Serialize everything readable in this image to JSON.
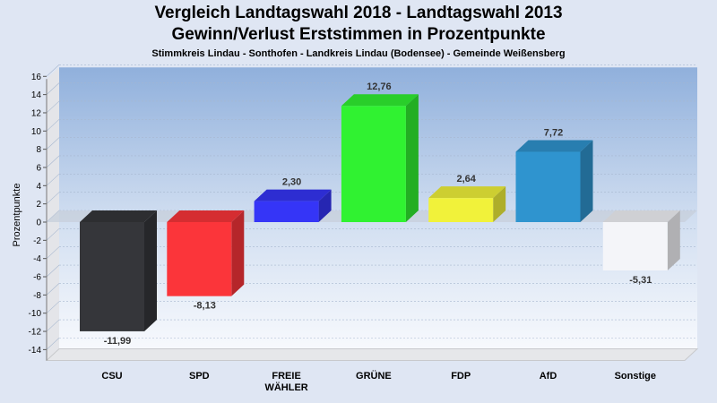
{
  "chart_data": {
    "type": "bar",
    "title": "Vergleich Landtagswahl 2018 - Landtagswahl 2013",
    "subtitle": "Gewinn/Verlust Erststimmen in Prozentpunkte",
    "subtitle2": "Stimmkreis Lindau - Sonthofen - Landkreis Lindau (Bodensee) - Gemeinde Weißensberg",
    "ylabel": "Prozentpunkte",
    "ylim": [
      -15,
      16
    ],
    "yticks": [
      16,
      14,
      12,
      10,
      8,
      6,
      4,
      2,
      0,
      -2,
      -4,
      -6,
      -8,
      -10,
      -12,
      -14
    ],
    "categories": [
      [
        "CSU"
      ],
      [
        "SPD"
      ],
      [
        "FREIE",
        "WÄHLER"
      ],
      [
        "GRÜNE"
      ],
      [
        "FDP"
      ],
      [
        "AfD"
      ],
      [
        "Sonstige"
      ]
    ],
    "values": [
      -11.99,
      -8.13,
      2.3,
      12.76,
      2.64,
      7.72,
      -5.31
    ],
    "data_labels": [
      "-11,99",
      "-8,13",
      "2,30",
      "12,76",
      "2,64",
      "7,72",
      "-5,31"
    ],
    "colors": [
      "#35363a",
      "#fb353a",
      "#3535f7",
      "#30f231",
      "#f1f23a",
      "#2f94cf",
      "#f4f5f9"
    ],
    "grid": true,
    "legend": "none"
  }
}
